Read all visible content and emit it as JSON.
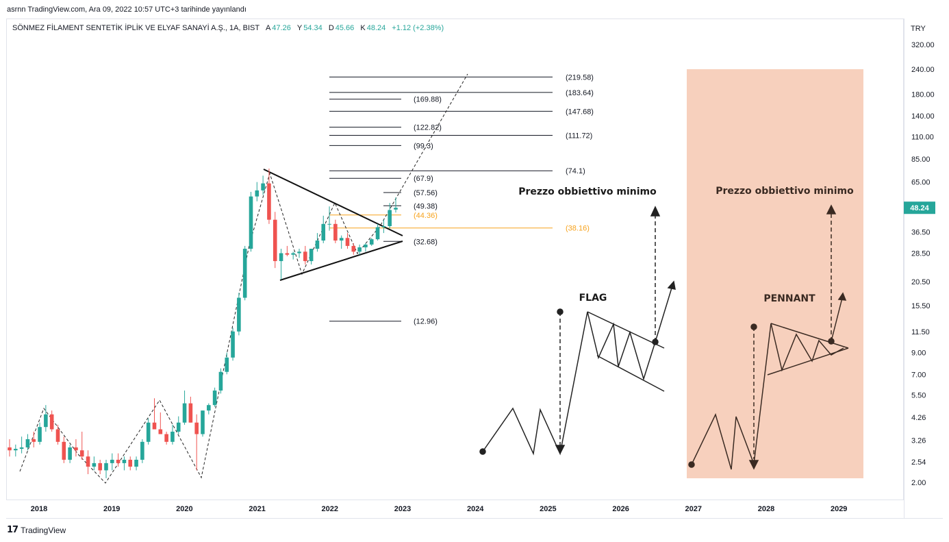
{
  "header": {
    "publish_info": "asrnn TradingView.com, Ara 09, 2022 10:57 UTC+3 tarihinde yayınlandı"
  },
  "legend": {
    "symbol": "SÖNMEZ FİLAMENT SENTETİK İPLİK VE ELYAF SANAYİ A.Ş., 1A, BIST",
    "open_label": "A",
    "open_value": "47.26",
    "high_label": "Y",
    "high_value": "54.34",
    "low_label": "D",
    "low_value": "45.66",
    "close_label": "K",
    "close_value": "48.24",
    "change": "+1.12 (+2.38%)"
  },
  "footer": {
    "brand": "TradingView",
    "logo_text": "17"
  },
  "colors": {
    "up": "#26a69a",
    "down": "#ef5350",
    "orange": "#f7a21b",
    "current_price_bg": "#26a69a",
    "pennant_bg": "#f7d0bd"
  },
  "chart_data": {
    "type": "candlestick",
    "currency": "TRY",
    "y_scale": "log",
    "y_ticks": [
      "320.00",
      "240.00",
      "180.00",
      "140.00",
      "110.00",
      "85.00",
      "65.00",
      "48.24",
      "36.50",
      "28.50",
      "20.50",
      "15.50",
      "11.50",
      "9.00",
      "7.00",
      "5.50",
      "4.26",
      "3.26",
      "2.54",
      "2.00"
    ],
    "x_ticks": [
      "2018",
      "2019",
      "2020",
      "2021",
      "2022",
      "2023",
      "2024",
      "2025",
      "2026",
      "2027",
      "2028",
      "2029"
    ],
    "current_price": "48.24",
    "candles": [
      {
        "o": 3.0,
        "h": 3.3,
        "l": 2.7,
        "c": 2.9
      },
      {
        "o": 2.9,
        "h": 3.1,
        "l": 2.7,
        "c": 2.95
      },
      {
        "o": 2.95,
        "h": 3.4,
        "l": 2.8,
        "c": 3.0
      },
      {
        "o": 3.0,
        "h": 3.5,
        "l": 2.9,
        "c": 3.3
      },
      {
        "o": 3.3,
        "h": 3.6,
        "l": 3.0,
        "c": 3.2
      },
      {
        "o": 3.2,
        "h": 4.0,
        "l": 3.1,
        "c": 3.8
      },
      {
        "o": 3.8,
        "h": 4.9,
        "l": 3.6,
        "c": 4.4
      },
      {
        "o": 4.4,
        "h": 4.6,
        "l": 3.6,
        "c": 3.7
      },
      {
        "o": 3.7,
        "h": 3.9,
        "l": 3.1,
        "c": 3.2
      },
      {
        "o": 3.2,
        "h": 3.4,
        "l": 2.5,
        "c": 2.6
      },
      {
        "o": 2.6,
        "h": 3.1,
        "l": 2.5,
        "c": 3.0
      },
      {
        "o": 3.0,
        "h": 3.3,
        "l": 2.7,
        "c": 2.9
      },
      {
        "o": 2.9,
        "h": 3.6,
        "l": 2.6,
        "c": 2.7
      },
      {
        "o": 2.7,
        "h": 2.9,
        "l": 2.2,
        "c": 2.4
      },
      {
        "o": 2.4,
        "h": 2.7,
        "l": 2.3,
        "c": 2.5
      },
      {
        "o": 2.5,
        "h": 2.6,
        "l": 2.2,
        "c": 2.3
      },
      {
        "o": 2.3,
        "h": 2.6,
        "l": 2.1,
        "c": 2.5
      },
      {
        "o": 2.5,
        "h": 2.8,
        "l": 2.3,
        "c": 2.6
      },
      {
        "o": 2.6,
        "h": 2.8,
        "l": 2.4,
        "c": 2.5
      },
      {
        "o": 2.5,
        "h": 2.7,
        "l": 2.3,
        "c": 2.6
      },
      {
        "o": 2.6,
        "h": 2.7,
        "l": 2.3,
        "c": 2.4
      },
      {
        "o": 2.4,
        "h": 2.7,
        "l": 2.3,
        "c": 2.6
      },
      {
        "o": 2.6,
        "h": 3.3,
        "l": 2.5,
        "c": 3.2
      },
      {
        "o": 3.2,
        "h": 4.2,
        "l": 3.1,
        "c": 4.0
      },
      {
        "o": 4.0,
        "h": 5.3,
        "l": 3.8,
        "c": 3.7
      },
      {
        "o": 3.7,
        "h": 4.5,
        "l": 3.5,
        "c": 3.5
      },
      {
        "o": 3.5,
        "h": 3.6,
        "l": 3.1,
        "c": 3.2
      },
      {
        "o": 3.2,
        "h": 3.9,
        "l": 3.1,
        "c": 3.6
      },
      {
        "o": 3.6,
        "h": 4.3,
        "l": 3.5,
        "c": 4.0
      },
      {
        "o": 4.0,
        "h": 5.8,
        "l": 3.9,
        "c": 5.0
      },
      {
        "o": 5.0,
        "h": 5.4,
        "l": 4.0,
        "c": 4.0
      },
      {
        "o": 4.0,
        "h": 4.4,
        "l": 2.3,
        "c": 3.5
      },
      {
        "o": 3.5,
        "h": 4.6,
        "l": 3.4,
        "c": 4.6
      },
      {
        "o": 4.6,
        "h": 5.0,
        "l": 4.4,
        "c": 4.9
      },
      {
        "o": 4.9,
        "h": 6.0,
        "l": 4.8,
        "c": 5.8
      },
      {
        "o": 5.8,
        "h": 7.5,
        "l": 5.6,
        "c": 7.2
      },
      {
        "o": 7.2,
        "h": 9.0,
        "l": 7.0,
        "c": 8.5
      },
      {
        "o": 8.5,
        "h": 12.0,
        "l": 8.2,
        "c": 11.5
      },
      {
        "o": 11.5,
        "h": 18.0,
        "l": 11.0,
        "c": 17.0
      },
      {
        "o": 17.0,
        "h": 31.0,
        "l": 16.5,
        "c": 30.0
      },
      {
        "o": 30.0,
        "h": 58.0,
        "l": 29.0,
        "c": 55.0
      },
      {
        "o": 55.0,
        "h": 65.0,
        "l": 52.0,
        "c": 59.0
      },
      {
        "o": 59.0,
        "h": 70.0,
        "l": 56.0,
        "c": 64.0
      },
      {
        "o": 64.0,
        "h": 76.0,
        "l": 40.0,
        "c": 42.0
      },
      {
        "o": 42.0,
        "h": 46.0,
        "l": 24.0,
        "c": 26.0
      },
      {
        "o": 26.0,
        "h": 30.0,
        "l": 21.0,
        "c": 28.5
      },
      {
        "o": 28.5,
        "h": 31.0,
        "l": 27.5,
        "c": 28.0
      },
      {
        "o": 28.0,
        "h": 29.0,
        "l": 26.5,
        "c": 28.5
      },
      {
        "o": 28.5,
        "h": 30.0,
        "l": 27.0,
        "c": 29.0
      },
      {
        "o": 29.0,
        "h": 31.0,
        "l": 25.0,
        "c": 26.0
      },
      {
        "o": 26.0,
        "h": 30.0,
        "l": 25.0,
        "c": 30.0
      },
      {
        "o": 30.0,
        "h": 36.0,
        "l": 29.0,
        "c": 33.0
      },
      {
        "o": 33.0,
        "h": 44.0,
        "l": 32.0,
        "c": 40.0
      },
      {
        "o": 40.0,
        "h": 49.0,
        "l": 37.0,
        "c": 40.0
      },
      {
        "o": 40.0,
        "h": 42.0,
        "l": 32.0,
        "c": 33.0
      },
      {
        "o": 33.0,
        "h": 35.0,
        "l": 30.0,
        "c": 34.0
      },
      {
        "o": 34.0,
        "h": 36.0,
        "l": 30.0,
        "c": 31.0
      },
      {
        "o": 31.0,
        "h": 32.0,
        "l": 28.0,
        "c": 29.0
      },
      {
        "o": 29.0,
        "h": 31.5,
        "l": 28.0,
        "c": 30.5
      },
      {
        "o": 30.5,
        "h": 32.0,
        "l": 29.0,
        "c": 31.5
      },
      {
        "o": 31.5,
        "h": 34.0,
        "l": 31.0,
        "c": 33.5
      },
      {
        "o": 33.5,
        "h": 40.0,
        "l": 33.0,
        "c": 38.5
      },
      {
        "o": 38.5,
        "h": 42.0,
        "l": 36.0,
        "c": 39.0
      },
      {
        "o": 39.0,
        "h": 51.0,
        "l": 38.0,
        "c": 47.0
      },
      {
        "o": 47.26,
        "h": 54.34,
        "l": 45.66,
        "c": 48.24
      }
    ],
    "levels": [
      {
        "label": "(219.58)",
        "value": 219.58
      },
      {
        "label": "(183.64)",
        "value": 183.64
      },
      {
        "label": "(169.88)",
        "value": 169.88
      },
      {
        "label": "(147.68)",
        "value": 147.68
      },
      {
        "label": "(122.82)",
        "value": 122.82
      },
      {
        "label": "(111.72)",
        "value": 111.72
      },
      {
        "label": "(99.3)",
        "value": 99.3
      },
      {
        "label": "(74.1)",
        "value": 74.1
      },
      {
        "label": "(67.9)",
        "value": 67.9
      },
      {
        "label": "(57.56)",
        "value": 57.56
      },
      {
        "label": "(49.38)",
        "value": 49.38
      },
      {
        "label": "(44.36)",
        "value": 44.36,
        "color": "orange"
      },
      {
        "label": "(38.16)",
        "value": 38.16,
        "color": "orange"
      },
      {
        "label": "(32.68)",
        "value": 32.68
      },
      {
        "label": "(12.96)",
        "value": 12.96
      }
    ],
    "annotations": {
      "flag_title": "FLAG",
      "pennant_title": "PENNANT",
      "target_left": "Prezzo obbiettivo minimo",
      "target_right": "Prezzo obbiettivo minimo"
    }
  }
}
